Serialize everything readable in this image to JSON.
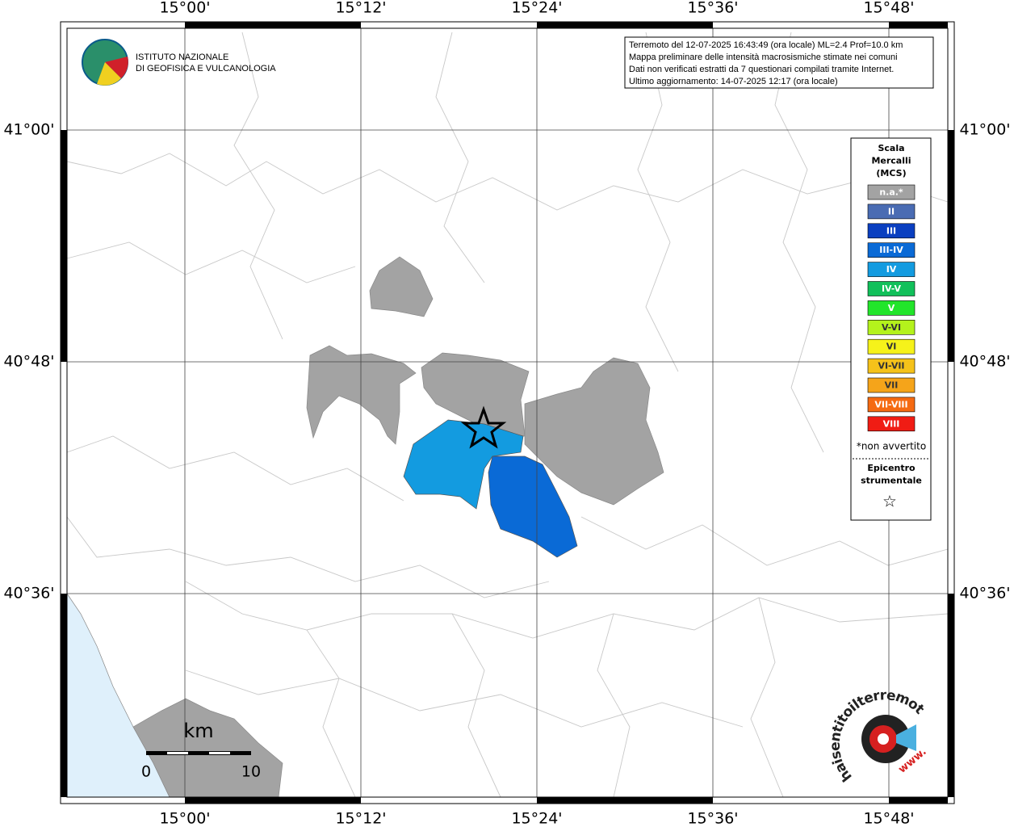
{
  "header": {
    "info_lines": [
      "Terremoto del 12-07-2025 16:43:49 (ora locale) ML=2.4 Prof=10.0 km",
      "Mappa preliminare delle intensità macrosismiche stimate nei comuni",
      "Dati non verificati estratti da 7 questionari compilati tramite Internet.",
      "Ultimo aggiornamento: 14-07-2025 12:17 (ora locale)"
    ],
    "logo": [
      "ISTITUTO NAZIONALE",
      "DI GEOFISICA E VULCANOLOGIA"
    ]
  },
  "graticule": {
    "lon_labels": [
      "15°00'",
      "15°12'",
      "15°24'",
      "15°36'",
      "15°48'"
    ],
    "lat_labels": [
      "41°00'",
      "40°48'",
      "40°36'"
    ]
  },
  "legend": {
    "title": [
      "Scala",
      "Mercalli",
      "(MCS)"
    ],
    "items": [
      {
        "label": "n.a.*",
        "color": "#a3a3a3"
      },
      {
        "label": "II",
        "color": "#4a6cb3"
      },
      {
        "label": "III",
        "color": "#0a3fc0"
      },
      {
        "label": "III-IV",
        "color": "#0a6ad6"
      },
      {
        "label": "IV",
        "color": "#139be0"
      },
      {
        "label": "IV-V",
        "color": "#11c05a"
      },
      {
        "label": "V",
        "color": "#22e52a"
      },
      {
        "label": "V-VI",
        "color": "#b4f21c"
      },
      {
        "label": "VI",
        "color": "#f6f21a"
      },
      {
        "label": "VI-VII",
        "color": "#f5c21a"
      },
      {
        "label": "VII",
        "color": "#f5a41a"
      },
      {
        "label": "VII-VIII",
        "color": "#f56a12"
      },
      {
        "label": "VIII",
        "color": "#f01c14"
      }
    ],
    "note": "*non avvertito",
    "epicenter": [
      "Epicentro",
      "strumentale"
    ],
    "star": "☆"
  },
  "scale_bar": {
    "unit": "km",
    "labels": [
      "0",
      "10"
    ]
  },
  "badge": {
    "text": "haisentitoilterremoto.it",
    "www": "www."
  }
}
